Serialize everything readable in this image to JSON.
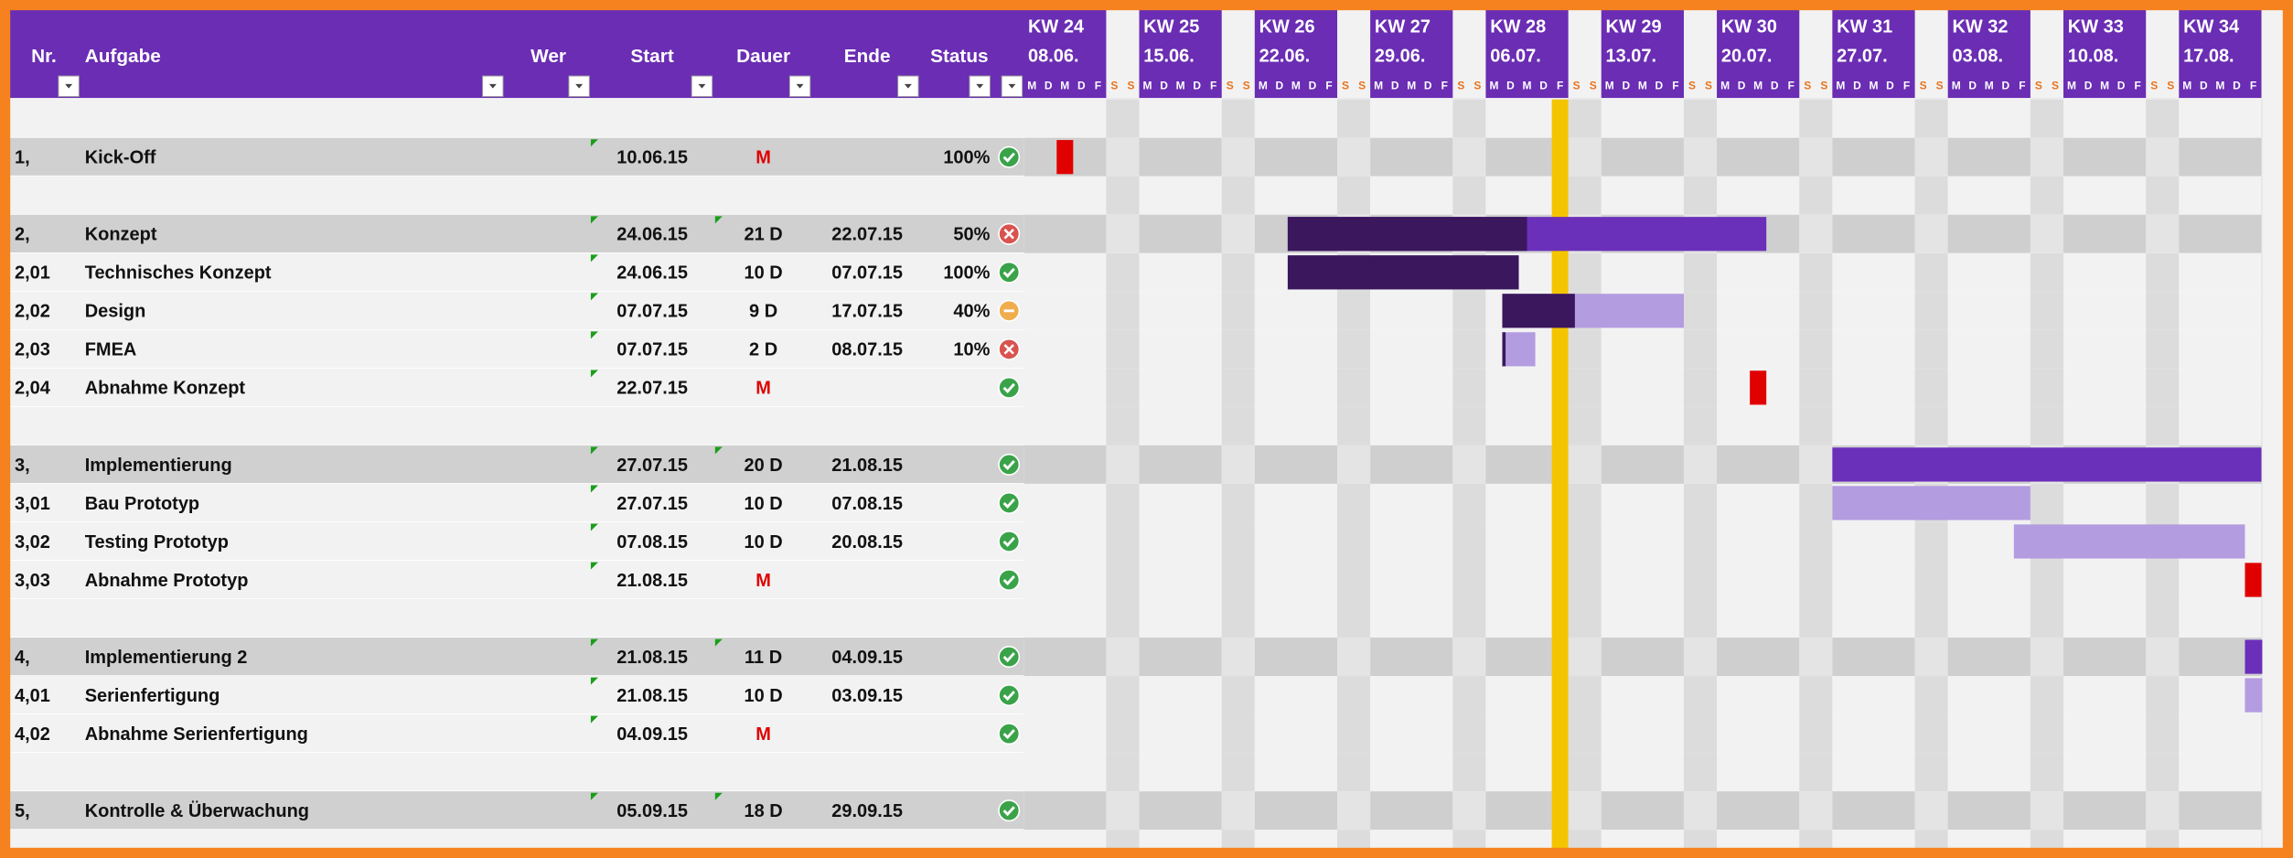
{
  "header": {
    "columns": [
      "Nr.",
      "Aufgabe",
      "Wer",
      "Start",
      "Dauer",
      "Ende",
      "Status"
    ],
    "weeks": [
      {
        "kw": "KW 24",
        "date": "08.06."
      },
      {
        "kw": "KW 25",
        "date": "15.06."
      },
      {
        "kw": "KW 26",
        "date": "22.06."
      },
      {
        "kw": "KW 27",
        "date": "29.06."
      },
      {
        "kw": "KW 28",
        "date": "06.07."
      },
      {
        "kw": "KW 29",
        "date": "13.07."
      },
      {
        "kw": "KW 30",
        "date": "20.07."
      },
      {
        "kw": "KW 31",
        "date": "27.07."
      },
      {
        "kw": "KW 32",
        "date": "03.08."
      },
      {
        "kw": "KW 33",
        "date": "10.08."
      },
      {
        "kw": "KW 34",
        "date": "17.08."
      }
    ],
    "days": [
      "M",
      "D",
      "M",
      "D",
      "F",
      "S",
      "S"
    ]
  },
  "table": {
    "groups": [
      {
        "nr": "1,",
        "task": "Kick-Off",
        "start": "10.06.15",
        "duration": "M",
        "status": "100%",
        "tasks": []
      },
      {
        "nr": "2,",
        "task": "Konzept",
        "start": "24.06.15",
        "duration": "21 D",
        "end": "22.07.15",
        "status": "50%",
        "tasks": [
          {
            "nr": "2,01",
            "task": "Technisches Konzept",
            "start": "24.06.15",
            "duration": "10 D",
            "end": "07.07.15",
            "status": "100%"
          },
          {
            "nr": "2,02",
            "task": "Design",
            "start": "07.07.15",
            "duration": "9 D",
            "end": "17.07.15",
            "status": "40%"
          },
          {
            "nr": "2,03",
            "task": "FMEA",
            "start": "07.07.15",
            "duration": "2 D",
            "end": "08.07.15",
            "status": "10%"
          },
          {
            "nr": "2,04",
            "task": "Abnahme Konzept",
            "start": "22.07.15",
            "duration": "M"
          }
        ]
      },
      {
        "nr": "3,",
        "task": "Implementierung",
        "start": "27.07.15",
        "duration": "20 D",
        "end": "21.08.15",
        "tasks": [
          {
            "nr": "3,01",
            "task": "Bau Prototyp",
            "start": "27.07.15",
            "duration": "10 D",
            "end": "07.08.15"
          },
          {
            "nr": "3,02",
            "task": "Testing Prototyp",
            "start": "07.08.15",
            "duration": "10 D",
            "end": "20.08.15"
          },
          {
            "nr": "3,03",
            "task": "Abnahme Prototyp",
            "start": "21.08.15",
            "duration": "M"
          }
        ]
      },
      {
        "nr": "4,",
        "task": "Implementierung 2",
        "start": "21.08.15",
        "duration": "11 D",
        "end": "04.09.15",
        "tasks": [
          {
            "nr": "4,01",
            "task": "Serienfertigung",
            "start": "21.08.15",
            "duration": "10 D",
            "end": "03.09.15"
          },
          {
            "nr": "4,02",
            "task": "Abnahme Serienfertigung",
            "start": "04.09.15",
            "duration": "M"
          }
        ]
      },
      {
        "nr": "5,",
        "task": "Kontrolle & Überwachung",
        "start": "05.09.15",
        "duration": "18 D",
        "end": "29.09.15",
        "tasks": []
      }
    ]
  }
}
